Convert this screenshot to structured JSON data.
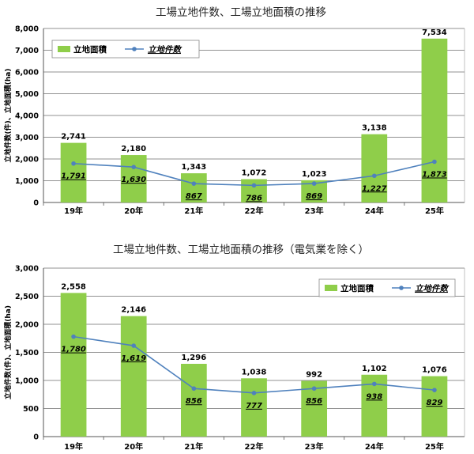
{
  "chart_data": [
    {
      "type": "bar",
      "title": "工場立地件数、工場立地面積の推移",
      "ylabel": "立地件数(件)、立地面積(ha)",
      "ylim": [
        0,
        8000
      ],
      "yticks": [
        0,
        1000,
        2000,
        3000,
        4000,
        5000,
        6000,
        7000,
        8000
      ],
      "ytick_labels": [
        "0",
        "1,000",
        "2,000",
        "3,000",
        "4,000",
        "5,000",
        "6,000",
        "7,000",
        "8,000"
      ],
      "categories": [
        "19年",
        "20年",
        "21年",
        "22年",
        "23年",
        "24年",
        "25年"
      ],
      "grid": true,
      "legend": "top-left",
      "series": [
        {
          "name": "立地面積",
          "kind": "bar",
          "color": "#8fce4a",
          "values": [
            2741,
            2180,
            1343,
            1072,
            1023,
            3138,
            7534
          ],
          "labels": [
            "2,741",
            "2,180",
            "1,343",
            "1,072",
            "1,023",
            "3,138",
            "7,534"
          ]
        },
        {
          "name": "立地件数",
          "kind": "line",
          "color": "#4f81bd",
          "values": [
            1791,
            1630,
            867,
            786,
            869,
            1227,
            1873
          ],
          "labels": [
            "1,791",
            "1,630",
            "867",
            "786",
            "869",
            "1,227",
            "1,873"
          ]
        }
      ]
    },
    {
      "type": "bar",
      "title": "工場立地件数、工場立地面積の推移（電気業を除く）",
      "ylabel": "立地件数(件)、立地面積(ha)",
      "ylim": [
        0,
        3000
      ],
      "yticks": [
        0,
        500,
        1000,
        1500,
        2000,
        2500,
        3000
      ],
      "ytick_labels": [
        "0",
        "500",
        "1,000",
        "1,500",
        "2,000",
        "2,500",
        "3,000"
      ],
      "categories": [
        "19年",
        "20年",
        "21年",
        "22年",
        "23年",
        "24年",
        "25年"
      ],
      "grid": true,
      "legend": "top-right",
      "series": [
        {
          "name": "立地面積",
          "kind": "bar",
          "color": "#8fce4a",
          "values": [
            2558,
            2146,
            1296,
            1038,
            992,
            1102,
            1076
          ],
          "labels": [
            "2,558",
            "2,146",
            "1,296",
            "1,038",
            "992",
            "1,102",
            "1,076"
          ]
        },
        {
          "name": "立地件数",
          "kind": "line",
          "color": "#4f81bd",
          "values": [
            1780,
            1619,
            856,
            777,
            856,
            938,
            829
          ],
          "labels": [
            "1,780",
            "1,619",
            "856",
            "777",
            "856",
            "938",
            "829"
          ]
        }
      ]
    }
  ]
}
